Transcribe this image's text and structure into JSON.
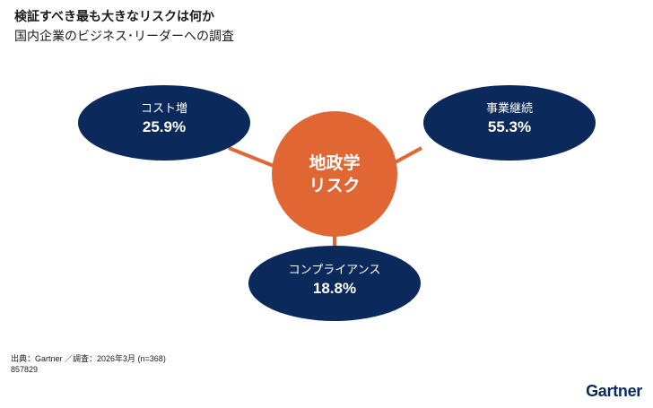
{
  "header": {
    "title": "検証すべき最も大きなリスクは何か",
    "subtitle": "国内企業のビジネス･リーダーへの調査"
  },
  "center_node": {
    "line1": "地政学",
    "line2": "リスク"
  },
  "nodes": [
    {
      "id": "cost",
      "label": "コスト増",
      "value": "25.9%"
    },
    {
      "id": "continuity",
      "label": "事業継続",
      "value": "55.3%"
    },
    {
      "id": "compliance",
      "label": "コンプライアンス",
      "value": "18.8%"
    }
  ],
  "footer": {
    "source": "出典：Gartner ／調査：2026年3月 (n=368)",
    "id": "857829"
  },
  "brand": {
    "logo_text": "Gartner"
  },
  "colors": {
    "navy": "#0b2a5b",
    "orange": "#e06633",
    "connector": "#e06633"
  }
}
